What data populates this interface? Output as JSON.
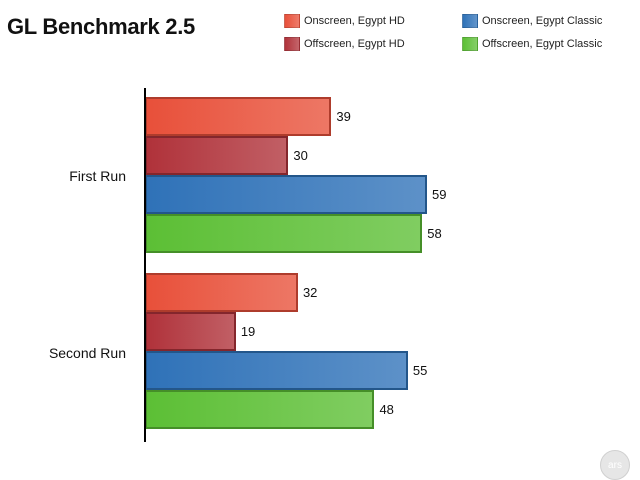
{
  "chart_data": {
    "type": "bar",
    "orientation": "horizontal",
    "title": "GL Benchmark 2.5",
    "categories": [
      "First Run",
      "Second Run"
    ],
    "series": [
      {
        "name": "Onscreen, Egypt HD",
        "color": "#e8503a",
        "values": [
          39,
          32
        ]
      },
      {
        "name": "Offscreen, Egypt HD",
        "color": "#b0323a",
        "values": [
          30,
          19
        ]
      },
      {
        "name": "Onscreen, Egypt Classic",
        "color": "#2f72b8",
        "values": [
          59,
          55
        ]
      },
      {
        "name": "Offscreen, Egypt Classic",
        "color": "#5cbf35",
        "values": [
          58,
          48
        ]
      }
    ],
    "legend_position": "top-right",
    "grid": false
  },
  "watermark": {
    "text": "ars"
  }
}
